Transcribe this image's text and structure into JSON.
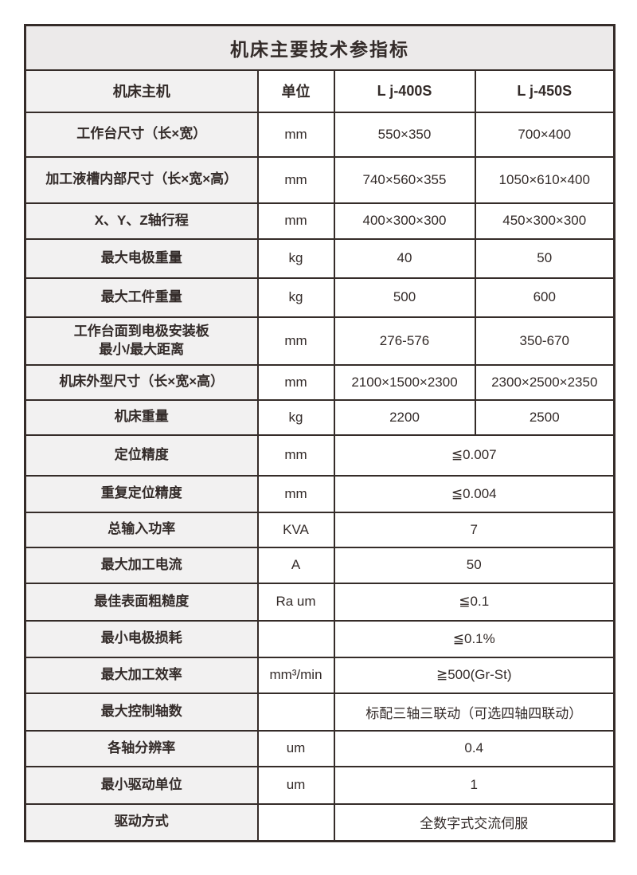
{
  "table": {
    "title": "机床主要技术参指标",
    "header": {
      "label": "机床主机",
      "unit": "单位",
      "models": [
        "L j-400S",
        "L j-450S"
      ]
    },
    "rows": [
      {
        "label": "工作台尺寸（长×宽）",
        "unit": "mm",
        "values": [
          "550×350",
          "700×400"
        ],
        "span": false
      },
      {
        "label": "加工液槽内部尺寸（长×宽×高）",
        "unit": "mm",
        "values": [
          "740×560×355",
          "1050×610×400"
        ],
        "span": false
      },
      {
        "label": "X、Y、Z轴行程",
        "unit": "mm",
        "values": [
          "400×300×300",
          "450×300×300"
        ],
        "span": false
      },
      {
        "label": "最大电极重量",
        "unit": "kg",
        "values": [
          "40",
          "50"
        ],
        "span": false
      },
      {
        "label": "最大工件重量",
        "unit": "kg",
        "values": [
          "500",
          "600"
        ],
        "span": false
      },
      {
        "label": "工作台面到电极安装板\n最小/最大距离",
        "unit": "mm",
        "values": [
          "276-576",
          "350-670"
        ],
        "span": false
      },
      {
        "label": "机床外型尺寸（长×宽×高）",
        "unit": "mm",
        "values": [
          "2100×1500×2300",
          "2300×2500×2350"
        ],
        "span": false
      },
      {
        "label": "机床重量",
        "unit": "kg",
        "values": [
          "2200",
          "2500"
        ],
        "span": false
      },
      {
        "label": "定位精度",
        "unit": "mm",
        "values": [
          "≦0.007"
        ],
        "span": true
      },
      {
        "label": "重复定位精度",
        "unit": "mm",
        "values": [
          "≦0.004"
        ],
        "span": true
      },
      {
        "label": "总输入功率",
        "unit": "KVA",
        "values": [
          "7"
        ],
        "span": true
      },
      {
        "label": "最大加工电流",
        "unit": "A",
        "values": [
          "50"
        ],
        "span": true
      },
      {
        "label": "最佳表面粗糙度",
        "unit": "Ra um",
        "values": [
          "≦0.1"
        ],
        "span": true
      },
      {
        "label": "最小电极损耗",
        "unit": "",
        "values": [
          "≦0.1%"
        ],
        "span": true
      },
      {
        "label": "最大加工效率",
        "unit": "mm³/min",
        "values": [
          "≧500(Gr-St)"
        ],
        "span": true
      },
      {
        "label": "最大控制轴数",
        "unit": "",
        "values": [
          "标配三轴三联动（可选四轴四联动）"
        ],
        "span": true
      },
      {
        "label": "各轴分辨率",
        "unit": "um",
        "values": [
          "0.4"
        ],
        "span": true
      },
      {
        "label": "最小驱动单位",
        "unit": "um",
        "values": [
          "1"
        ],
        "span": true
      },
      {
        "label": "驱动方式",
        "unit": "",
        "values": [
          "全数字式交流伺服"
        ],
        "span": true
      }
    ],
    "colors": {
      "border": "#352c29",
      "title_bg": "#eceaea",
      "label_bg": "#f2f1f1",
      "text": "#332b29"
    }
  }
}
